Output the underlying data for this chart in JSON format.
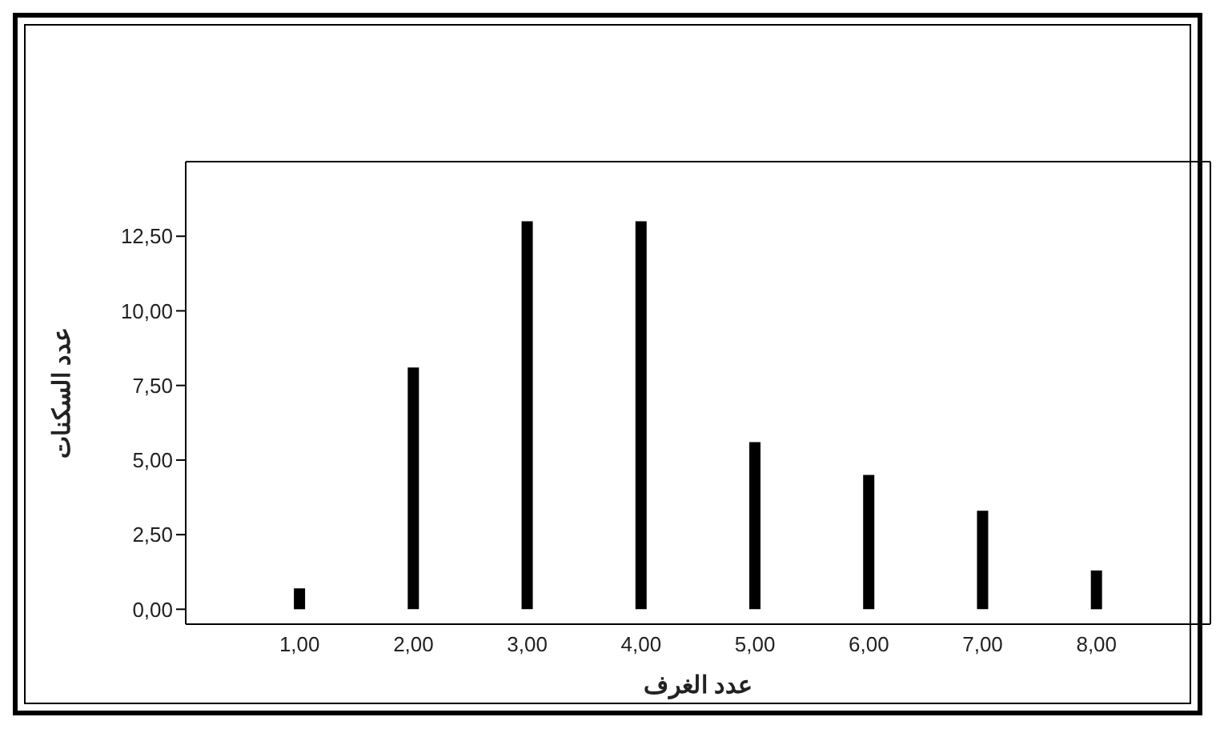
{
  "chart_data": {
    "type": "bar",
    "xlabel": "عدد الغرف",
    "ylabel": "عدد السكنات",
    "x": [
      1,
      2,
      3,
      4,
      5,
      6,
      7,
      8
    ],
    "values": [
      0.7,
      8.1,
      13,
      13,
      5.6,
      4.5,
      3.3,
      1.3
    ],
    "color": "#000000",
    "xlim": [
      0,
      9
    ],
    "xticks": [
      {
        "value": 1,
        "label": "1,00"
      },
      {
        "value": 2,
        "label": "2,00"
      },
      {
        "value": 3,
        "label": "3,00"
      },
      {
        "value": 4,
        "label": "4,00"
      },
      {
        "value": 5,
        "label": "5,00"
      },
      {
        "value": 6,
        "label": "6,00"
      },
      {
        "value": 7,
        "label": "7,00"
      },
      {
        "value": 8,
        "label": "8,00"
      }
    ],
    "ylim": [
      -0.5,
      15
    ],
    "yticks": [
      {
        "value": 0,
        "label": "0,00"
      },
      {
        "value": 2.5,
        "label": "2,50"
      },
      {
        "value": 5,
        "label": "5,00"
      },
      {
        "value": 7.5,
        "label": "7,50"
      },
      {
        "value": 10,
        "label": "10,00"
      },
      {
        "value": 12.5,
        "label": "12,50"
      }
    ],
    "grid": false,
    "legend": false
  }
}
